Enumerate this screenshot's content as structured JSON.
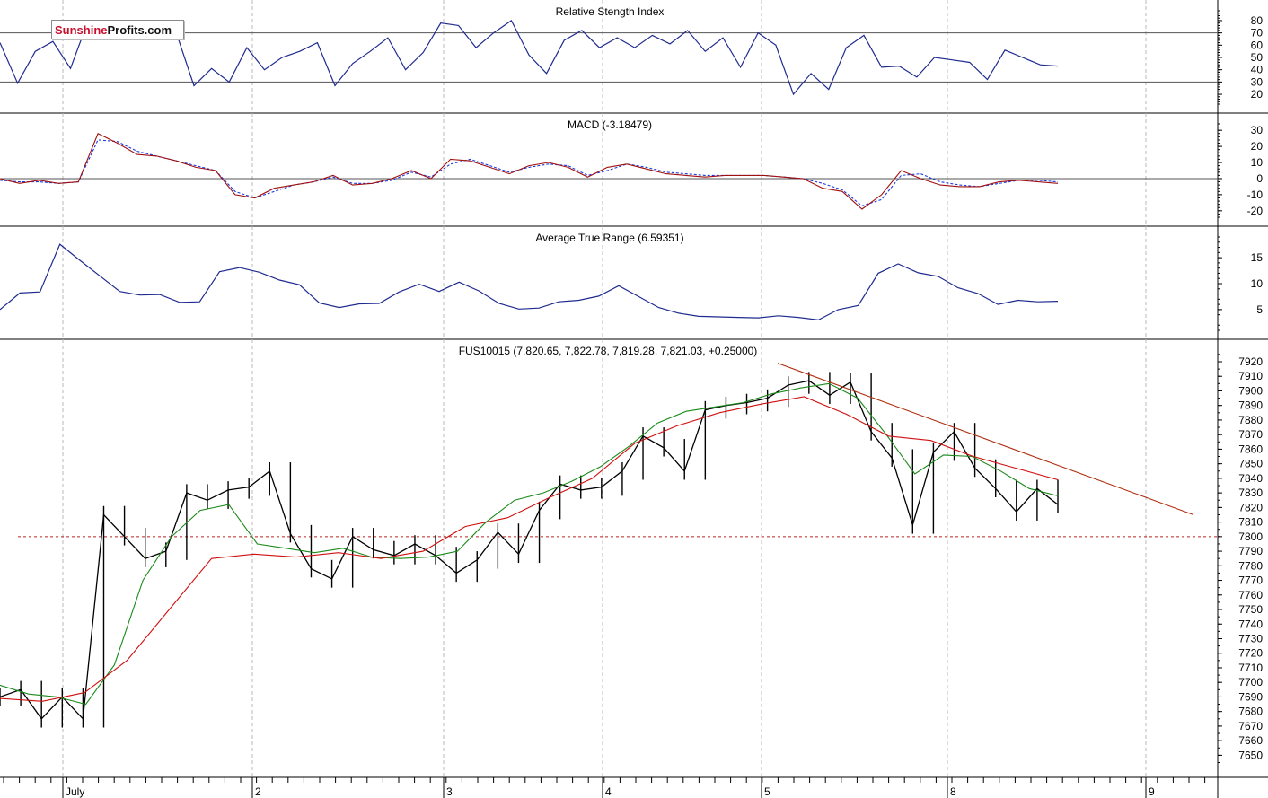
{
  "logo": {
    "part1": "Sunshine",
    "part2": "Profits.com"
  },
  "chart_data": [
    {
      "type": "line",
      "title": "Relative Stength Index",
      "ylim": [
        12,
        88
      ],
      "yticks": [
        20,
        30,
        40,
        50,
        60,
        70,
        80
      ],
      "reference_lines": [
        30,
        70
      ],
      "series": [
        {
          "values": [
            62,
            29,
            55,
            63,
            41,
            80,
            72,
            80,
            68,
            76,
            70,
            27,
            41,
            30,
            58,
            40,
            50,
            55,
            62,
            27,
            45,
            55,
            66,
            40,
            54,
            78,
            76,
            58,
            70,
            80,
            52,
            37,
            64,
            72,
            58,
            66,
            58,
            68,
            61,
            72,
            55,
            66,
            42,
            70,
            60,
            20,
            37,
            24,
            58,
            68,
            42,
            43,
            34,
            50,
            48,
            46,
            32,
            56,
            50,
            44,
            43
          ]
        }
      ]
    },
    {
      "type": "line",
      "title": "MACD (-3.18479)",
      "ylim": [
        -24,
        34
      ],
      "yticks": [
        -20,
        -10,
        0,
        10,
        20,
        30
      ],
      "reference_lines": [
        0
      ],
      "series": [
        {
          "values": [
            0,
            -3,
            -1,
            -3,
            -2,
            28,
            22,
            15,
            14,
            11,
            7,
            5,
            -10,
            -12,
            -6,
            -4,
            -2,
            2,
            -4,
            -3,
            0,
            5,
            0,
            12,
            11,
            7,
            3,
            8,
            10,
            7,
            1,
            7,
            9,
            6,
            3,
            2,
            1,
            2,
            2,
            2,
            1,
            0,
            -6,
            -8,
            -19,
            -10,
            5,
            0,
            -4,
            -5,
            -5,
            -2,
            -1,
            -2,
            -3
          ]
        },
        {
          "values": [
            -1,
            -2,
            -2,
            -3,
            -2,
            24,
            23,
            17,
            14,
            11,
            8,
            5,
            -8,
            -12,
            -8,
            -4,
            -2,
            1,
            -3,
            -3,
            -1,
            4,
            1,
            9,
            12,
            8,
            4,
            7,
            9,
            8,
            2,
            5,
            9,
            7,
            4,
            3,
            2,
            2,
            2,
            2,
            1,
            0,
            -3,
            -7,
            -17,
            -13,
            2,
            3,
            -2,
            -4,
            -5,
            -3,
            -1,
            -1,
            -2
          ]
        }
      ]
    },
    {
      "type": "line",
      "title": "Average True Range (6.59351)",
      "ylim": [
        1,
        19
      ],
      "yticks": [
        5,
        10,
        15
      ],
      "series": [
        {
          "values": [
            5,
            8.2,
            8.4,
            17.6,
            14.5,
            11.5,
            8.5,
            7.8,
            7.9,
            6.4,
            6.5,
            12.3,
            13.1,
            12.2,
            10.7,
            9.8,
            6.3,
            5.4,
            6.1,
            6.2,
            8.4,
            9.9,
            8.5,
            10.3,
            8.6,
            6.2,
            5.1,
            5.3,
            6.5,
            6.8,
            7.6,
            9.6,
            7.5,
            5.4,
            4.3,
            3.7,
            3.6,
            3.5,
            3.4,
            3.8,
            3.5,
            3,
            5,
            5.8,
            12,
            13.8,
            12.1,
            11.4,
            9.2,
            8.1,
            6,
            6.8,
            6.5,
            6.6
          ]
        }
      ]
    },
    {
      "type": "line",
      "title": "FUS10015 (7,820.65, 7,822.78, 7,819.28, 7,821.03, +0.25000)",
      "ylim": [
        7641,
        7928
      ],
      "yticks": [
        7650,
        7660,
        7670,
        7680,
        7690,
        7700,
        7710,
        7720,
        7730,
        7740,
        7750,
        7760,
        7770,
        7780,
        7790,
        7800,
        7810,
        7820,
        7830,
        7840,
        7850,
        7860,
        7870,
        7880,
        7890,
        7900,
        7910,
        7920
      ],
      "xticks": [
        "July",
        "2",
        "3",
        "4",
        "5",
        "8",
        "9"
      ],
      "reference_lines": [
        7800
      ],
      "trendline": [
        7919,
        7815
      ],
      "series": [
        {
          "values": [
            7690,
            7695,
            7675,
            7690,
            7675,
            7815,
            7800,
            7785,
            7790,
            7830,
            7825,
            7832,
            7834,
            7845,
            7802,
            7778,
            7771,
            7800,
            7791,
            7787,
            7795,
            7787,
            7775,
            7784,
            7803,
            7788,
            7818,
            7836,
            7832,
            7834,
            7845,
            7869,
            7861,
            7845,
            7887,
            7890,
            7892,
            7895,
            7904,
            7907,
            7897,
            7906,
            7872,
            7854,
            7808,
            7858,
            7872,
            7847,
            7833,
            7817,
            7833,
            7822
          ]
        },
        {
          "values": [
            7698,
            7692,
            7690,
            7685,
            7712,
            7770,
            7800,
            7818,
            7822,
            7795,
            7792,
            7789,
            7792,
            7786,
            7785,
            7786,
            7790,
            7810,
            7825,
            7830,
            7838,
            7848,
            7862,
            7878,
            7886,
            7889,
            7892,
            7898,
            7902,
            7905,
            7895,
            7870,
            7843,
            7856,
            7855,
            7845,
            7833,
            7828
          ]
        },
        {
          "values": [
            7689,
            7687,
            7693,
            7715,
            7750,
            7785,
            7788,
            7786,
            7789,
            7785,
            7790,
            7807,
            7813,
            7827,
            7840,
            7864,
            7876,
            7885,
            7891,
            7896,
            7884,
            7869,
            7866,
            7855,
            7847,
            7839
          ]
        }
      ]
    }
  ]
}
